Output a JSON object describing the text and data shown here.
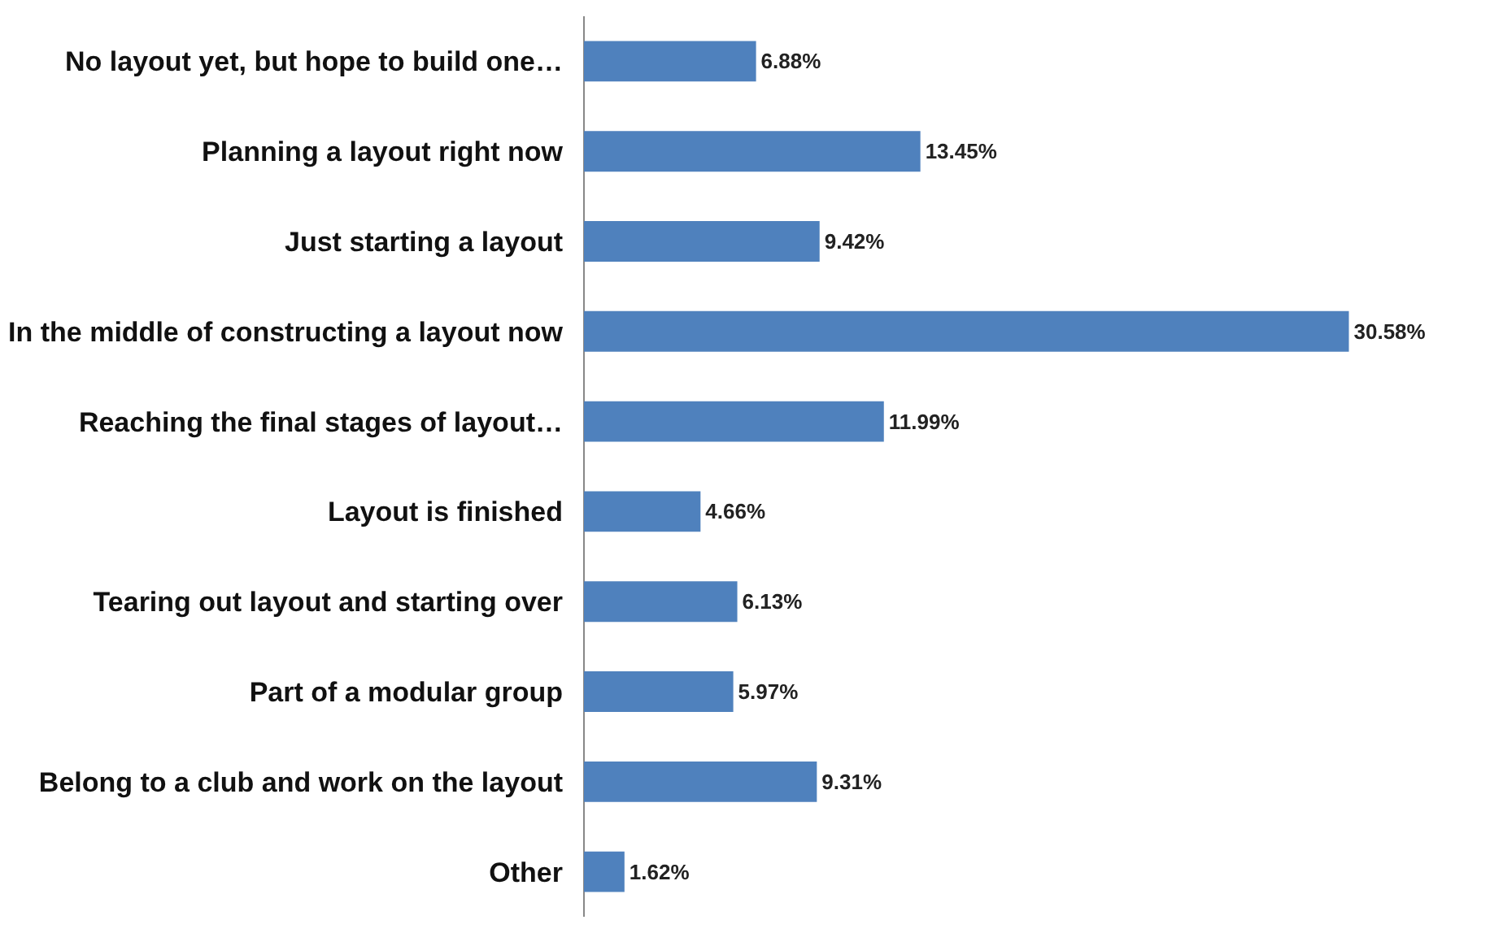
{
  "chart_data": {
    "type": "bar",
    "orientation": "horizontal",
    "categories": [
      "No layout yet, but hope to build one…",
      "Planning a layout right now",
      "Just starting a layout",
      "In the middle of constructing a layout now",
      "Reaching the final stages of layout…",
      "Layout is finished",
      "Tearing out layout and starting over",
      "Part of a modular group",
      "Belong to a club and work on the layout",
      "Other"
    ],
    "values": [
      6.88,
      13.45,
      9.42,
      30.58,
      11.99,
      4.66,
      6.13,
      5.97,
      9.31,
      1.62
    ],
    "value_labels": [
      "6.88%",
      "13.45%",
      "9.42%",
      "30.58%",
      "11.99%",
      "4.66%",
      "6.13%",
      "5.97%",
      "9.31%",
      "1.62%"
    ],
    "color": "#4f81bd",
    "tick_labels": "y",
    "legend": false
  }
}
